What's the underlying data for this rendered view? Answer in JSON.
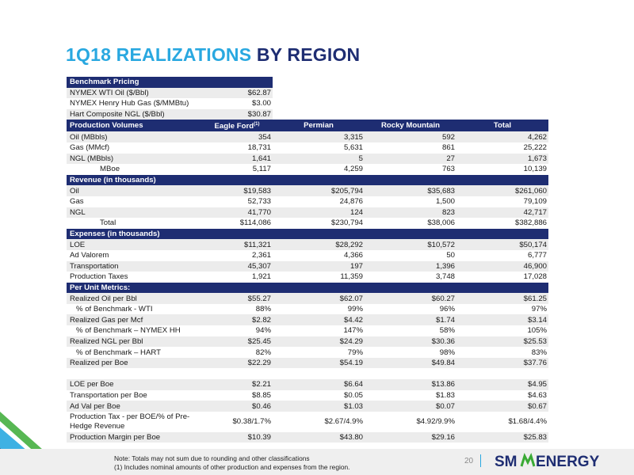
{
  "title": {
    "part1": "1Q18 REALIZATIONS",
    "part2": "BY REGION"
  },
  "benchmark": {
    "header": "Benchmark Pricing",
    "rows": [
      {
        "label": "NYMEX WTI Oil ($/Bbl)",
        "value": "$62.87"
      },
      {
        "label": "NYMEX Henry Hub Gas ($/MMBtu)",
        "value": "$3.00"
      },
      {
        "label": "Hart Composite NGL ($/Bbl)",
        "value": "$30.87"
      }
    ]
  },
  "columns": {
    "c1": "Eagle Ford",
    "c1_sup": "(1)",
    "c2": "Permian",
    "c3": "Rocky Mountain",
    "c4": "Total"
  },
  "production": {
    "header": "Production Volumes",
    "rows": [
      {
        "label": "Oil (MBbls)",
        "v": [
          "354",
          "3,315",
          "592",
          "4,262"
        ]
      },
      {
        "label": "Gas (MMcf)",
        "v": [
          "18,731",
          "5,631",
          "861",
          "25,222"
        ]
      },
      {
        "label": "NGL (MBbls)",
        "v": [
          "1,641",
          "5",
          "27",
          "1,673"
        ]
      },
      {
        "label": "MBoe",
        "v": [
          "5,117",
          "4,259",
          "763",
          "10,139"
        ]
      }
    ]
  },
  "revenue": {
    "header": "Revenue (in thousands)",
    "rows": [
      {
        "label": "Oil",
        "v": [
          "$19,583",
          "$205,794",
          "$35,683",
          "$261,060"
        ]
      },
      {
        "label": "Gas",
        "v": [
          "52,733",
          "24,876",
          "1,500",
          "79,109"
        ]
      },
      {
        "label": "NGL",
        "v": [
          "41,770",
          "124",
          "823",
          "42,717"
        ]
      },
      {
        "label": "Total",
        "v": [
          "$114,086",
          "$230,794",
          "$38,006",
          "$382,886"
        ]
      }
    ]
  },
  "expenses": {
    "header": "Expenses (in thousands)",
    "rows": [
      {
        "label": "LOE",
        "v": [
          "$11,321",
          "$28,292",
          "$10,572",
          "$50,174"
        ]
      },
      {
        "label": "Ad Valorem",
        "v": [
          "2,361",
          "4,366",
          "50",
          "6,777"
        ]
      },
      {
        "label": "Transportation",
        "v": [
          "45,307",
          "197",
          "1,396",
          "46,900"
        ]
      },
      {
        "label": "Production Taxes",
        "v": [
          "1,921",
          "11,359",
          "3,748",
          "17,028"
        ]
      }
    ]
  },
  "per_unit": {
    "header": "Per Unit Metrics:",
    "rows": [
      {
        "label": "Realized Oil per Bbl",
        "v": [
          "$55.27",
          "$62.07",
          "$60.27",
          "$61.25"
        ]
      },
      {
        "label": "% of Benchmark - WTI",
        "v": [
          "88%",
          "99%",
          "96%",
          "97%"
        ]
      },
      {
        "label": "Realized Gas per Mcf",
        "v": [
          "$2.82",
          "$4.42",
          "$1.74",
          "$3.14"
        ]
      },
      {
        "label": "% of Benchmark – NYMEX HH",
        "v": [
          "94%",
          "147%",
          "58%",
          "105%"
        ]
      },
      {
        "label": "Realized NGL per Bbl",
        "v": [
          "$25.45",
          "$24.29",
          "$30.36",
          "$25.53"
        ]
      },
      {
        "label": "% of Benchmark – HART",
        "v": [
          "82%",
          "79%",
          "98%",
          "83%"
        ]
      },
      {
        "label": "Realized per Boe",
        "v": [
          "$22.29",
          "$54.19",
          "$49.84",
          "$37.76"
        ]
      },
      {
        "label": "LOE per Boe",
        "v": [
          "$2.21",
          "$6.64",
          "$13.86",
          "$4.95"
        ]
      },
      {
        "label": "Transportation per Boe",
        "v": [
          "$8.85",
          "$0.05",
          "$1.83",
          "$4.63"
        ]
      },
      {
        "label": "Ad Val per Boe",
        "v": [
          "$0.46",
          "$1.03",
          "$0.07",
          "$0.67"
        ]
      },
      {
        "label": "Production Tax - per BOE/% of Pre-Hedge Revenue",
        "v": [
          "$0.38/1.7%",
          "$2.67/4.9%",
          "$4.92/9.9%",
          "$1.68/4.4%"
        ]
      },
      {
        "label": "Production Margin per Boe",
        "v": [
          "$10.39",
          "$43.80",
          "$29.16",
          "$25.83"
        ]
      }
    ]
  },
  "footer": {
    "note1": "Note: Totals may not sum due to rounding and other classifications",
    "note2": "(1)   Includes nominal amounts of other production and expenses from the region.",
    "page": "20",
    "logo_sm": "SM",
    "logo_energy": "ENERGY"
  },
  "colors": {
    "accent": "#29a8e0",
    "navy": "#1e2d72",
    "logo_green": "#3aaa35"
  }
}
